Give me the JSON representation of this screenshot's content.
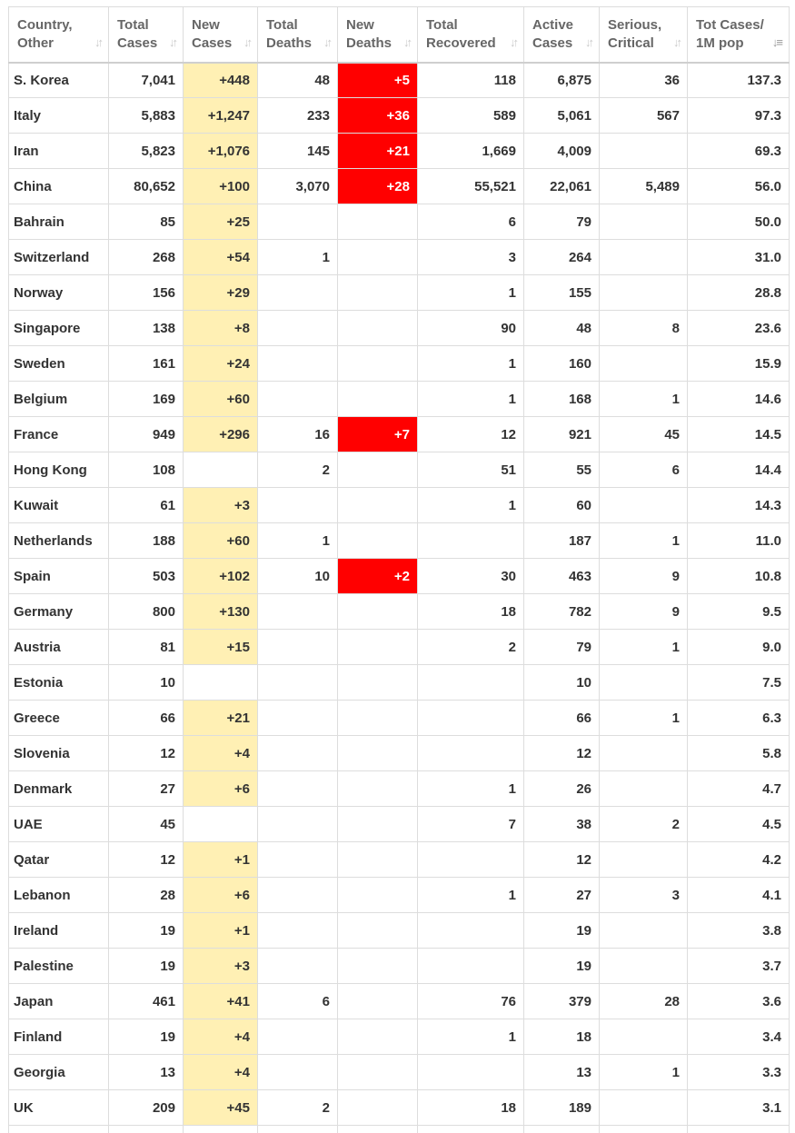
{
  "columns": [
    {
      "label": [
        "Country,",
        "Other"
      ],
      "sorted": false
    },
    {
      "label": [
        "Total",
        "Cases"
      ],
      "sorted": false
    },
    {
      "label": [
        "New",
        "Cases"
      ],
      "sorted": false
    },
    {
      "label": [
        "Total",
        "Deaths"
      ],
      "sorted": false
    },
    {
      "label": [
        "New",
        "Deaths"
      ],
      "sorted": false
    },
    {
      "label": [
        "Total",
        "Recovered"
      ],
      "sorted": false
    },
    {
      "label": [
        "Active",
        "Cases"
      ],
      "sorted": false
    },
    {
      "label": [
        "Serious,",
        "Critical"
      ],
      "sorted": false
    },
    {
      "label": [
        "Tot Cases/",
        "1M pop"
      ],
      "sorted": true
    }
  ],
  "icons": {
    "sort_default": "sort-both-arrows-icon",
    "sort_active": "sort-descending-icon"
  },
  "colors": {
    "new_cases_highlight": "#fff0b4",
    "new_deaths_highlight": "#ff0000"
  },
  "rows": [
    [
      "S. Korea",
      "7,041",
      "+448",
      "48",
      "+5",
      "118",
      "6,875",
      "36",
      "137.3"
    ],
    [
      "Italy",
      "5,883",
      "+1,247",
      "233",
      "+36",
      "589",
      "5,061",
      "567",
      "97.3"
    ],
    [
      "Iran",
      "5,823",
      "+1,076",
      "145",
      "+21",
      "1,669",
      "4,009",
      "",
      "69.3"
    ],
    [
      "China",
      "80,652",
      "+100",
      "3,070",
      "+28",
      "55,521",
      "22,061",
      "5,489",
      "56.0"
    ],
    [
      "Bahrain",
      "85",
      "+25",
      "",
      "",
      "6",
      "79",
      "",
      "50.0"
    ],
    [
      "Switzerland",
      "268",
      "+54",
      "1",
      "",
      "3",
      "264",
      "",
      "31.0"
    ],
    [
      "Norway",
      "156",
      "+29",
      "",
      "",
      "1",
      "155",
      "",
      "28.8"
    ],
    [
      "Singapore",
      "138",
      "+8",
      "",
      "",
      "90",
      "48",
      "8",
      "23.6"
    ],
    [
      "Sweden",
      "161",
      "+24",
      "",
      "",
      "1",
      "160",
      "",
      "15.9"
    ],
    [
      "Belgium",
      "169",
      "+60",
      "",
      "",
      "1",
      "168",
      "1",
      "14.6"
    ],
    [
      "France",
      "949",
      "+296",
      "16",
      "+7",
      "12",
      "921",
      "45",
      "14.5"
    ],
    [
      "Hong Kong",
      "108",
      "",
      "2",
      "",
      "51",
      "55",
      "6",
      "14.4"
    ],
    [
      "Kuwait",
      "61",
      "+3",
      "",
      "",
      "1",
      "60",
      "",
      "14.3"
    ],
    [
      "Netherlands",
      "188",
      "+60",
      "1",
      "",
      "",
      "187",
      "1",
      "11.0"
    ],
    [
      "Spain",
      "503",
      "+102",
      "10",
      "+2",
      "30",
      "463",
      "9",
      "10.8"
    ],
    [
      "Germany",
      "800",
      "+130",
      "",
      "",
      "18",
      "782",
      "9",
      "9.5"
    ],
    [
      "Austria",
      "81",
      "+15",
      "",
      "",
      "2",
      "79",
      "1",
      "9.0"
    ],
    [
      "Estonia",
      "10",
      "",
      "",
      "",
      "",
      "10",
      "",
      "7.5"
    ],
    [
      "Greece",
      "66",
      "+21",
      "",
      "",
      "",
      "66",
      "1",
      "6.3"
    ],
    [
      "Slovenia",
      "12",
      "+4",
      "",
      "",
      "",
      "12",
      "",
      "5.8"
    ],
    [
      "Denmark",
      "27",
      "+6",
      "",
      "",
      "1",
      "26",
      "",
      "4.7"
    ],
    [
      "UAE",
      "45",
      "",
      "",
      "",
      "7",
      "38",
      "2",
      "4.5"
    ],
    [
      "Qatar",
      "12",
      "+1",
      "",
      "",
      "",
      "12",
      "",
      "4.2"
    ],
    [
      "Lebanon",
      "28",
      "+6",
      "",
      "",
      "1",
      "27",
      "3",
      "4.1"
    ],
    [
      "Ireland",
      "19",
      "+1",
      "",
      "",
      "",
      "19",
      "",
      "3.8"
    ],
    [
      "Palestine",
      "19",
      "+3",
      "",
      "",
      "",
      "19",
      "",
      "3.7"
    ],
    [
      "Japan",
      "461",
      "+41",
      "6",
      "",
      "76",
      "379",
      "28",
      "3.6"
    ],
    [
      "Finland",
      "19",
      "+4",
      "",
      "",
      "1",
      "18",
      "",
      "3.4"
    ],
    [
      "Georgia",
      "13",
      "+4",
      "",
      "",
      "",
      "13",
      "1",
      "3.3"
    ],
    [
      "UK",
      "209",
      "+45",
      "2",
      "",
      "18",
      "189",
      "",
      "3.1"
    ],
    [
      "",
      "",
      "",
      "",
      "",
      "",
      "",
      "",
      ""
    ]
  ]
}
